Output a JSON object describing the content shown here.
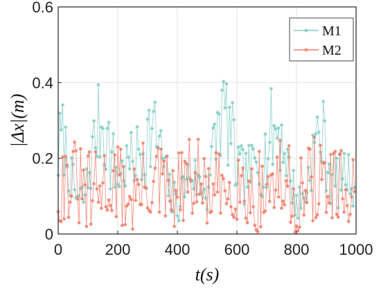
{
  "chart_data": {
    "type": "line",
    "xlabel": "t(s)",
    "ylabel": "|Δx|(m)",
    "xlim": [
      0,
      1000
    ],
    "ylim": [
      0,
      0.6
    ],
    "xticks": [
      "0",
      "200",
      "400",
      "600",
      "800",
      "1000"
    ],
    "yticks": [
      "0",
      "0.2",
      "0.4",
      "0.6"
    ],
    "grid": true,
    "legend_position": "top-right",
    "marker": "asterisk",
    "series": [
      {
        "name": "M1",
        "color": "#7fcdc4"
      },
      {
        "name": "M2",
        "color": "#ef7b68"
      }
    ]
  }
}
